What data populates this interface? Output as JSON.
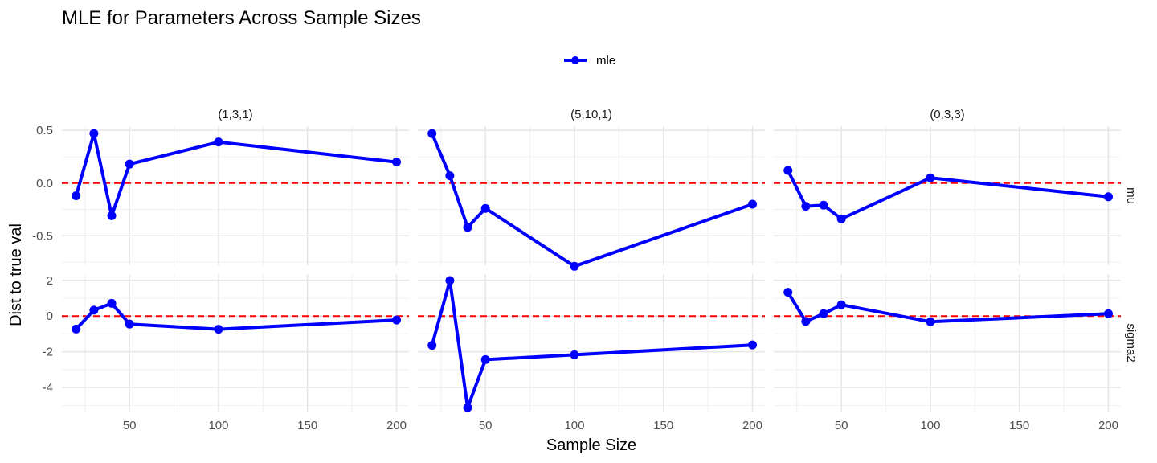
{
  "chart_data": {
    "type": "line",
    "title": "MLE for Parameters Across Sample Sizes",
    "xlabel": "Sample Size",
    "ylabel": "Dist to true val",
    "legend": {
      "position": "top",
      "entries": [
        {
          "name": "mle",
          "color": "#0000FF"
        }
      ]
    },
    "facet_columns": [
      "(1,3,1)",
      "(5,10,1)",
      "(0,3,3)"
    ],
    "facet_rows": [
      "mu",
      "sigma2"
    ],
    "x": [
      20,
      30,
      40,
      50,
      100,
      200
    ],
    "x_ticks": [
      50,
      100,
      150,
      200
    ],
    "xlim": [
      12,
      207
    ],
    "rows": {
      "mu": {
        "ylim": [
          -0.78,
          0.54
        ],
        "y_ticks": [
          -0.5,
          0.0,
          0.5
        ],
        "y_tick_labels": [
          "-0.5",
          "0.0",
          "0.5"
        ]
      },
      "sigma2": {
        "ylim": [
          -5.35,
          2.35
        ],
        "y_ticks": [
          -4,
          -2,
          0,
          2
        ],
        "y_tick_labels": [
          "-4",
          "-2",
          "0",
          "2"
        ]
      }
    },
    "reference_line": {
      "y": 0,
      "color": "#FF0000",
      "style": "dashed"
    },
    "series_color": "#0000FF",
    "grid": true,
    "panels": [
      {
        "col": "(1,3,1)",
        "row": "mu",
        "values": [
          -0.12,
          0.47,
          -0.31,
          0.18,
          0.39,
          0.2
        ]
      },
      {
        "col": "(5,10,1)",
        "row": "mu",
        "values": [
          0.47,
          0.07,
          -0.42,
          -0.24,
          -0.79,
          -0.2
        ]
      },
      {
        "col": "(0,3,3)",
        "row": "mu",
        "values": [
          0.12,
          -0.22,
          -0.21,
          -0.34,
          0.05,
          -0.13
        ]
      },
      {
        "col": "(1,3,1)",
        "row": "sigma2",
        "values": [
          -0.73,
          0.33,
          0.71,
          -0.45,
          -0.74,
          -0.22
        ]
      },
      {
        "col": "(5,10,1)",
        "row": "sigma2",
        "values": [
          -1.64,
          1.99,
          -5.13,
          -2.44,
          -2.17,
          -1.62
        ]
      },
      {
        "col": "(0,3,3)",
        "row": "sigma2",
        "values": [
          1.33,
          -0.3,
          0.13,
          0.63,
          -0.32,
          0.13
        ]
      }
    ]
  }
}
